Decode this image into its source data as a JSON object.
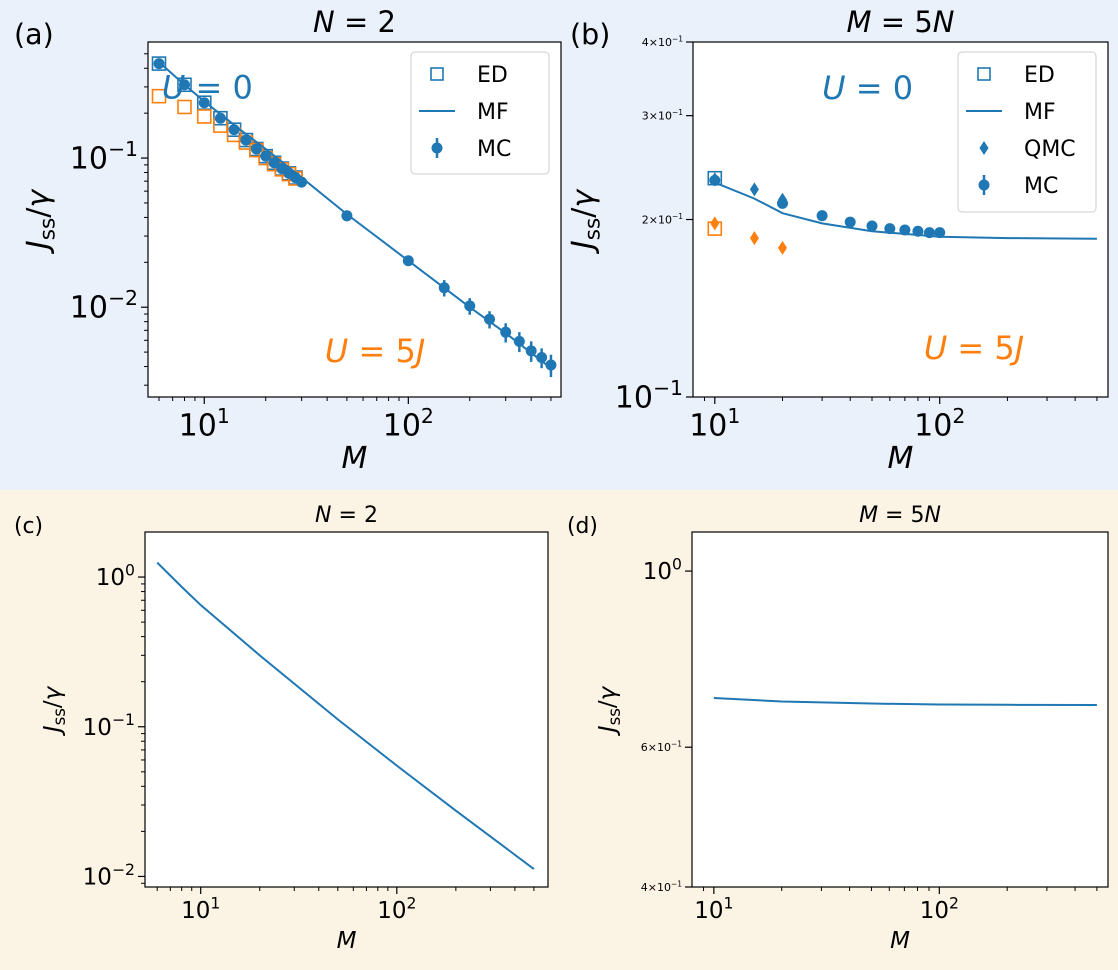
{
  "colors": {
    "blue": "#1f77b4",
    "orange": "#ff7f0e",
    "top_background": "#eaf1fb",
    "bottom_background": "#fbf3e4"
  },
  "chart_data": [
    {
      "panel": "(a)",
      "type": "scatter",
      "title": "N = 2",
      "xlabel": "M",
      "ylabel": "J_ss/γ",
      "xscale": "log",
      "yscale": "log",
      "xlim": [
        5.3,
        560
      ],
      "ylim": [
        0.0025,
        0.6
      ],
      "xticks": [
        10,
        100
      ],
      "xtick_labels": [
        "10^1",
        "10^2"
      ],
      "yticks": [
        0.01,
        0.1
      ],
      "ytick_labels": [
        "10^-2",
        "10^-1"
      ],
      "annotations": [
        {
          "text": "U = 0",
          "color": "blue",
          "x": 6.2,
          "y": 0.25
        },
        {
          "text": "U = 5J",
          "color": "orange",
          "x": 39,
          "y": 0.0043
        }
      ],
      "legend": {
        "position": "top-right",
        "entries": [
          "ED",
          "MF",
          "MC"
        ]
      },
      "series": [
        {
          "name": "ED",
          "marker": "square-open",
          "color": "blue",
          "x": [
            6,
            8,
            10,
            12,
            14,
            16,
            18,
            20,
            22,
            24,
            26,
            28
          ],
          "y": [
            0.43,
            0.31,
            0.235,
            0.185,
            0.155,
            0.132,
            0.115,
            0.103,
            0.093,
            0.085,
            0.079,
            0.074
          ]
        },
        {
          "name": "",
          "marker": "square-open",
          "color": "orange",
          "x": [
            6,
            8,
            10,
            12,
            14,
            16,
            18,
            20,
            22,
            24,
            26,
            28
          ],
          "y": [
            0.26,
            0.22,
            0.19,
            0.165,
            0.143,
            0.127,
            0.113,
            0.1,
            0.091,
            0.084,
            0.078,
            0.073
          ]
        },
        {
          "name": "MF",
          "type": "line",
          "color": "blue",
          "x": [
            6,
            8,
            10,
            15,
            20,
            30,
            50,
            100,
            200,
            300,
            500
          ],
          "y": [
            0.44,
            0.31,
            0.24,
            0.155,
            0.115,
            0.074,
            0.042,
            0.0205,
            0.01,
            0.0067,
            0.0039
          ]
        },
        {
          "name": "MC",
          "marker": "circle",
          "color": "blue",
          "errorbars": true,
          "x": [
            6,
            8,
            10,
            12,
            14,
            16,
            18,
            20,
            22,
            24,
            26,
            28,
            30,
            50,
            100,
            150,
            200,
            250,
            300,
            350,
            400,
            450,
            500
          ],
          "y": [
            0.43,
            0.31,
            0.235,
            0.185,
            0.155,
            0.132,
            0.115,
            0.103,
            0.093,
            0.085,
            0.079,
            0.074,
            0.069,
            0.041,
            0.0205,
            0.0135,
            0.0102,
            0.0083,
            0.0068,
            0.0059,
            0.0051,
            0.0046,
            0.0041
          ],
          "yerr": [
            0.01,
            0.008,
            0.006,
            0.005,
            0.004,
            0.003,
            0.003,
            0.003,
            0.002,
            0.002,
            0.002,
            0.002,
            0.002,
            0.0015,
            0.001,
            0.0017,
            0.0013,
            0.0011,
            0.001,
            0.0009,
            0.0008,
            0.0007,
            0.0007
          ]
        }
      ]
    },
    {
      "panel": "(b)",
      "type": "scatter",
      "title": "M = 5N",
      "xlabel": "M",
      "ylabel": "J_ss/γ",
      "xscale": "log",
      "yscale": "log",
      "xlim": [
        8,
        560
      ],
      "ylim": [
        0.1,
        0.4
      ],
      "xticks": [
        10,
        100
      ],
      "xtick_labels": [
        "10^1",
        "10^2"
      ],
      "yticks": [
        0.1,
        0.2,
        0.3,
        0.4
      ],
      "ytick_labels": [
        "10^-1",
        "2×10^-1",
        "3×10^-1",
        "4×10^-1"
      ],
      "annotations": [
        {
          "text": "U = 0",
          "color": "blue",
          "x": 30,
          "y": 0.32
        },
        {
          "text": "U = 5J",
          "color": "orange",
          "x": 85,
          "y": 0.116
        }
      ],
      "legend": {
        "position": "top-right",
        "entries": [
          "ED",
          "MF",
          "QMC",
          "MC"
        ]
      },
      "series": [
        {
          "name": "ED",
          "marker": "square-open",
          "color": "blue",
          "x": [
            10
          ],
          "y": [
            0.235
          ]
        },
        {
          "name": "",
          "marker": "square-open",
          "color": "orange",
          "x": [
            10
          ],
          "y": [
            0.193
          ]
        },
        {
          "name": "MF",
          "type": "line",
          "color": "blue",
          "x": [
            10,
            15,
            20,
            30,
            50,
            100,
            200,
            500
          ],
          "y": [
            0.231,
            0.217,
            0.205,
            0.197,
            0.191,
            0.187,
            0.186,
            0.1855
          ]
        },
        {
          "name": "QMC",
          "marker": "diamond",
          "color": "blue",
          "x": [
            10,
            15,
            20
          ],
          "y": [
            0.234,
            0.225,
            0.216
          ]
        },
        {
          "name": "",
          "marker": "diamond",
          "color": "orange",
          "x": [
            10,
            15,
            20
          ],
          "y": [
            0.197,
            0.186,
            0.179
          ]
        },
        {
          "name": "MC",
          "marker": "circle",
          "color": "blue",
          "errorbars": true,
          "x": [
            10,
            20,
            30,
            40,
            50,
            60,
            70,
            80,
            90,
            100
          ],
          "y": [
            0.233,
            0.213,
            0.203,
            0.198,
            0.195,
            0.193,
            0.192,
            0.191,
            0.19,
            0.19
          ],
          "yerr": [
            0.003,
            0.003,
            0.002,
            0.002,
            0.002,
            0.002,
            0.002,
            0.002,
            0.002,
            0.002
          ]
        }
      ]
    },
    {
      "panel": "(c)",
      "type": "line",
      "title": "N = 2",
      "xlabel": "M",
      "ylabel": "J_ss/γ",
      "xscale": "log",
      "yscale": "log",
      "xlim": [
        5.2,
        590
      ],
      "ylim": [
        0.0085,
        2.0
      ],
      "xticks": [
        10,
        100
      ],
      "xtick_labels": [
        "10^1",
        "10^2"
      ],
      "yticks": [
        0.01,
        0.1,
        1
      ],
      "ytick_labels": [
        "10^-2",
        "10^-1",
        "10^0"
      ],
      "series": [
        {
          "name": "",
          "color": "blue",
          "x": [
            6,
            8,
            10,
            20,
            50,
            100,
            200,
            500
          ],
          "y": [
            1.25,
            0.86,
            0.65,
            0.3,
            0.112,
            0.055,
            0.0275,
            0.0112
          ]
        }
      ]
    },
    {
      "panel": "(d)",
      "type": "line",
      "title": "M = 5N",
      "xlabel": "M",
      "ylabel": "J_ss/γ",
      "xscale": "log",
      "yscale": "log",
      "xlim": [
        8,
        560
      ],
      "ylim": [
        0.4,
        1.12
      ],
      "xticks": [
        10,
        100
      ],
      "xtick_labels": [
        "10^1",
        "10^2"
      ],
      "yticks": [
        0.4,
        0.6,
        1
      ],
      "ytick_labels": [
        "4×10^-1",
        "6×10^-1",
        "10^0"
      ],
      "series": [
        {
          "name": "",
          "color": "blue",
          "x": [
            10,
            20,
            50,
            100,
            200,
            500
          ],
          "y": [
            0.692,
            0.685,
            0.681,
            0.679,
            0.6785,
            0.678
          ]
        }
      ]
    }
  ]
}
